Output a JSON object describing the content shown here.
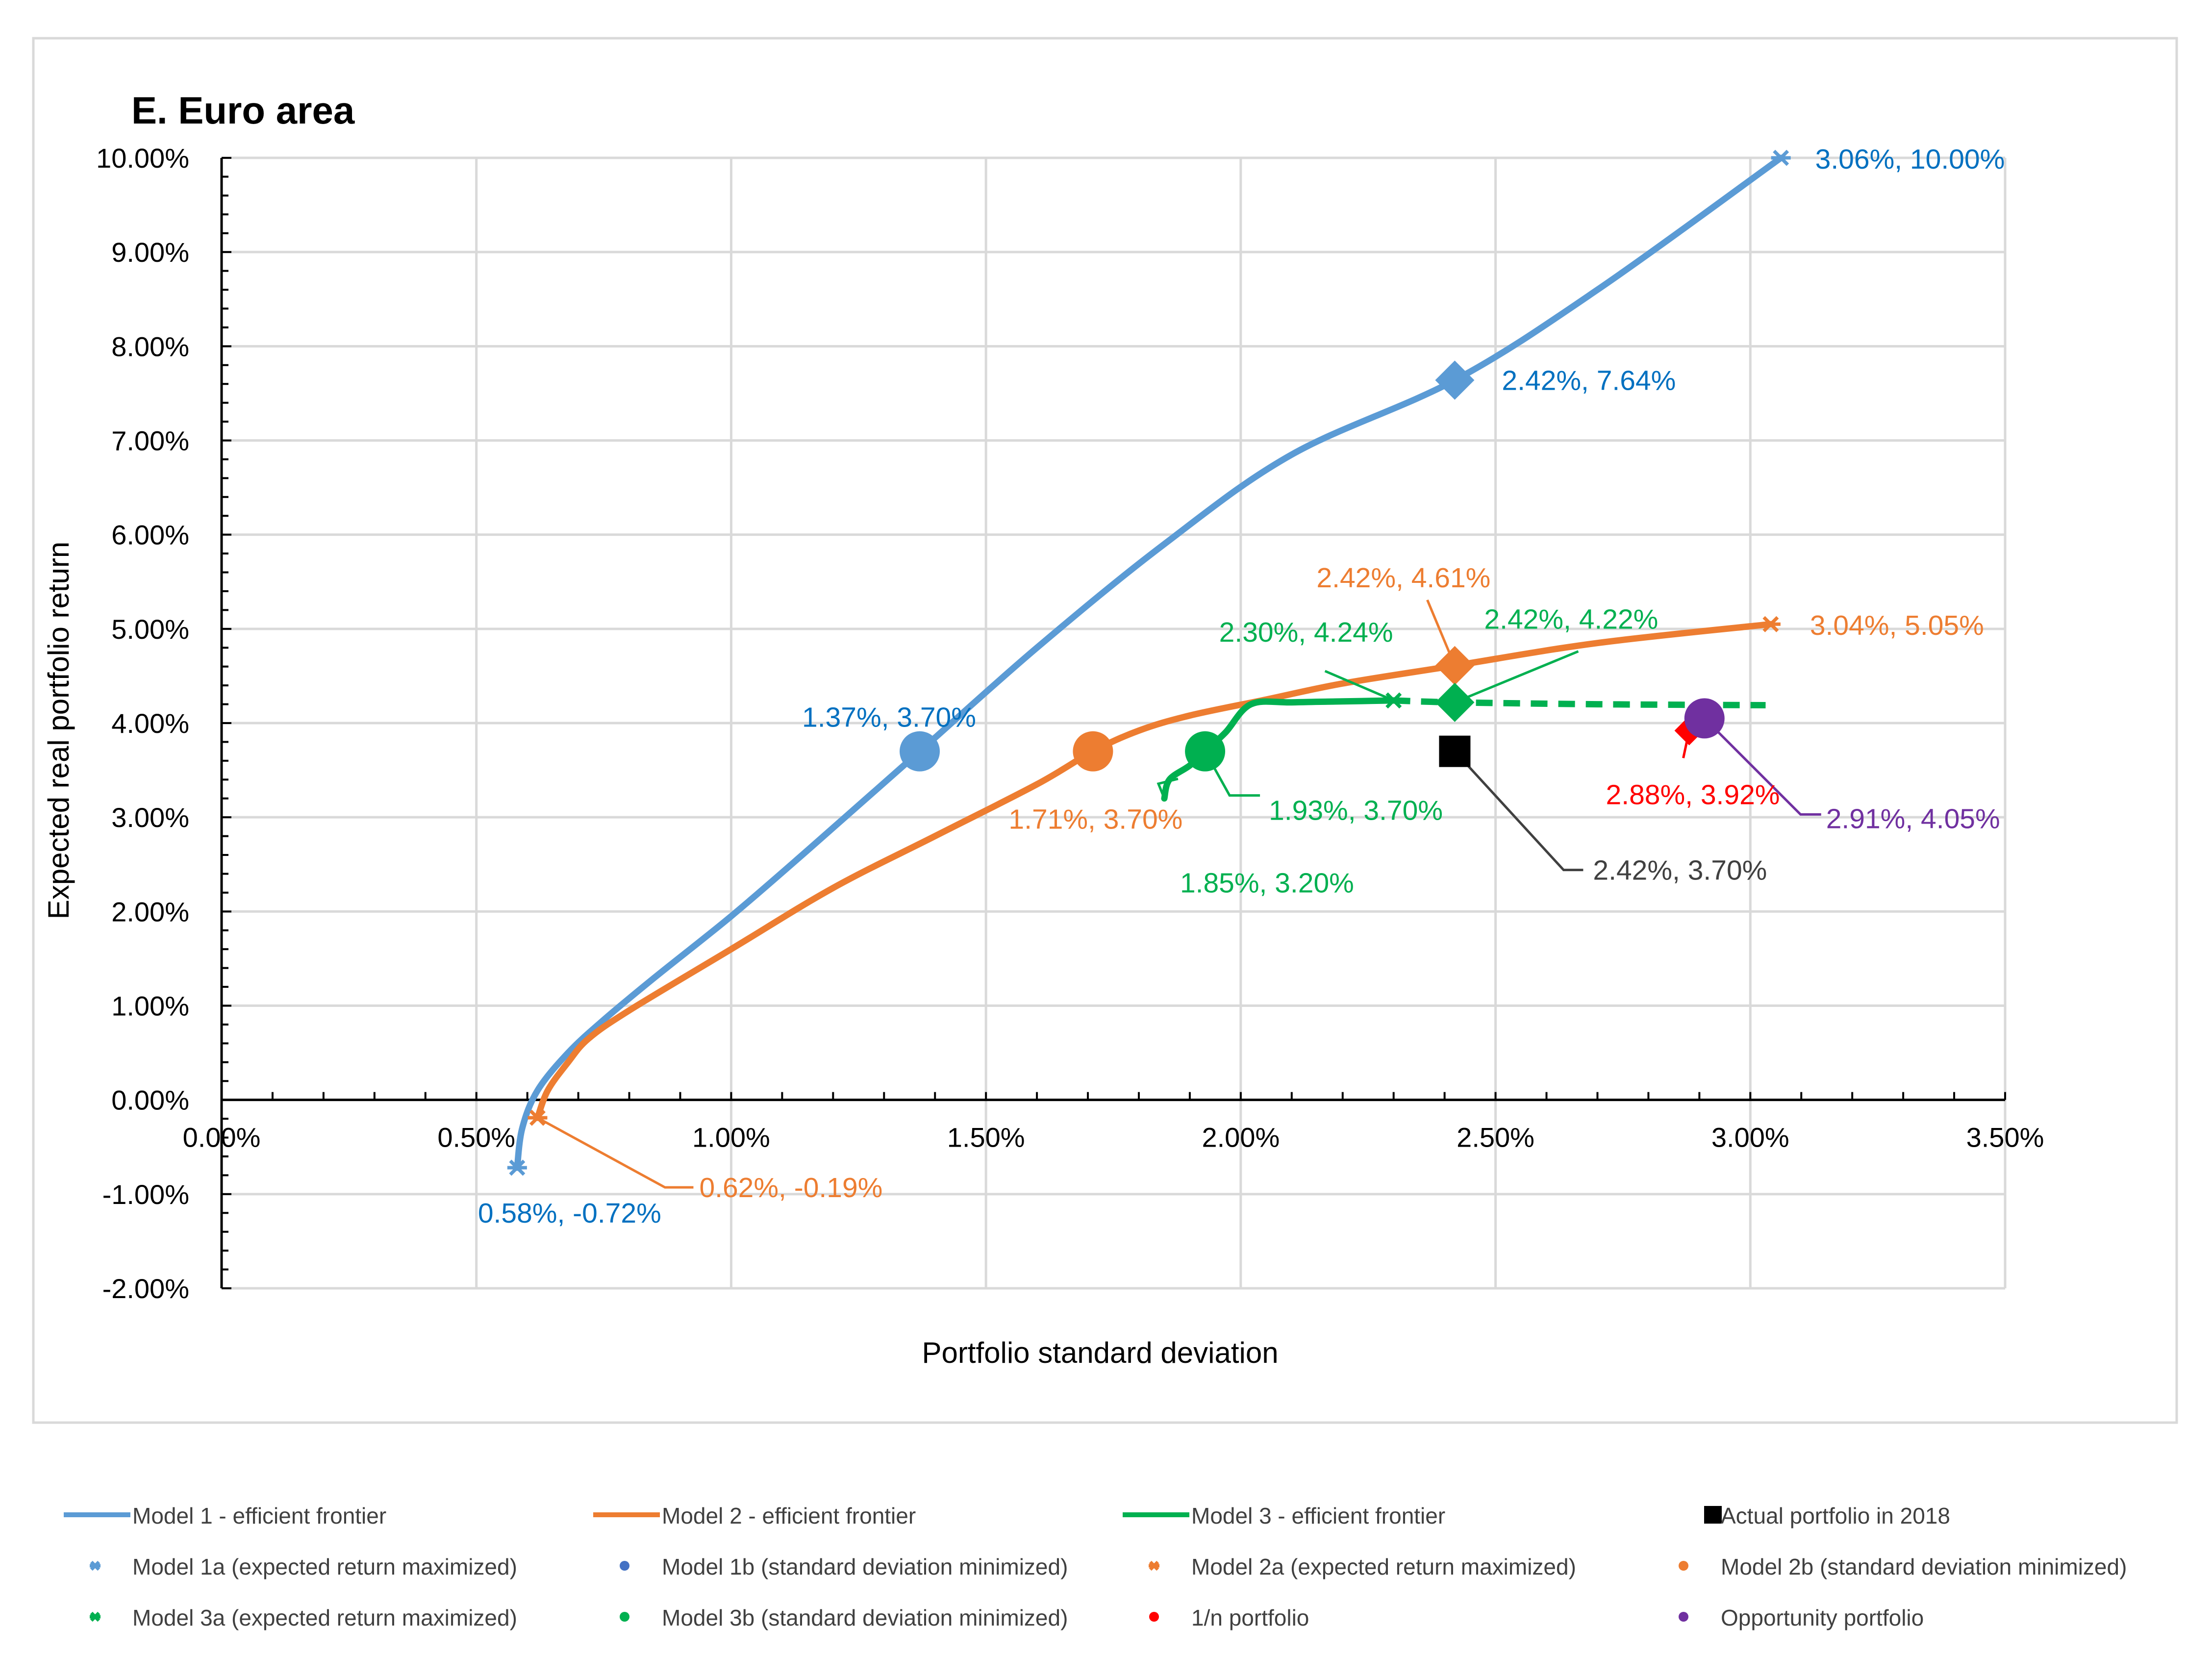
{
  "chart_data": {
    "type": "line",
    "title": "E. Euro area",
    "xlabel": "Portfolio standard deviation",
    "ylabel": "Expected real portfolio return",
    "xlim": [
      0,
      3.5
    ],
    "ylim": [
      -2,
      10
    ],
    "xticks": [
      0,
      0.5,
      1,
      1.5,
      2,
      2.5,
      3,
      3.5
    ],
    "yticks": [
      -2,
      -1,
      0,
      1,
      2,
      3,
      4,
      5,
      6,
      7,
      8,
      9,
      10
    ],
    "xtick_labels": [
      "0.00%",
      "0.50%",
      "1.00%",
      "1.50%",
      "2.00%",
      "2.50%",
      "3.00%",
      "3.50%"
    ],
    "ytick_labels": [
      "-2.00%",
      "-1.00%",
      "0.00%",
      "1.00%",
      "2.00%",
      "3.00%",
      "4.00%",
      "5.00%",
      "6.00%",
      "7.00%",
      "8.00%",
      "9.00%",
      "10.00%"
    ],
    "grid": true,
    "legend_position": "bottom",
    "colors": {
      "model1": "#5B9BD5",
      "model1_label": "#0070C0",
      "model2": "#ED7D31",
      "model3": "#00B050",
      "actual": "#000000",
      "one_over_n": "#FF0000",
      "opportunity": "#7030A0"
    },
    "series": [
      {
        "name": "Model 1 - efficient frontier",
        "color": "#5B9BD5",
        "x": [
          0.58,
          0.59,
          0.62,
          0.68,
          0.75,
          0.85,
          1.0,
          1.15,
          1.37,
          1.6,
          1.85,
          2.1,
          2.42,
          2.7,
          3.06
        ],
        "y": [
          -0.72,
          -0.3,
          0.1,
          0.5,
          0.85,
          1.3,
          1.95,
          2.65,
          3.7,
          4.8,
          5.9,
          6.85,
          7.64,
          8.6,
          10.0
        ]
      },
      {
        "name": "Model 2 - efficient frontier",
        "color": "#ED7D31",
        "x": [
          0.62,
          0.64,
          0.68,
          0.72,
          0.8,
          1.0,
          1.2,
          1.4,
          1.6,
          1.71,
          1.8,
          1.9,
          2.05,
          2.2,
          2.42,
          2.7,
          3.04
        ],
        "y": [
          -0.19,
          0.1,
          0.4,
          0.65,
          0.95,
          1.6,
          2.25,
          2.8,
          3.35,
          3.7,
          3.92,
          4.08,
          4.25,
          4.42,
          4.61,
          4.85,
          5.05
        ]
      },
      {
        "name": "Model 3 - efficient frontier",
        "color": "#00B050",
        "x": [
          1.85,
          1.86,
          1.9,
          1.93,
          1.97,
          2.02,
          2.1,
          2.2,
          2.3
        ],
        "y": [
          3.2,
          3.4,
          3.55,
          3.7,
          3.9,
          4.2,
          4.22,
          4.23,
          4.24
        ]
      },
      {
        "name": "Model 3 - efficient frontier (extension)",
        "color": "#00B050",
        "dashed": true,
        "x": [
          2.3,
          2.42,
          2.7,
          3.03
        ],
        "y": [
          4.24,
          4.22,
          4.2,
          4.19
        ]
      }
    ],
    "points": [
      {
        "name": "Model 1a  (expected return maximized)",
        "x": 3.06,
        "y": 10.0,
        "marker": "star",
        "color": "#5B9BD5",
        "label": "3.06%, 10.00%",
        "label_color": "#0070C0"
      },
      {
        "name": "Model 1a min",
        "x": 0.58,
        "y": -0.72,
        "marker": "star",
        "color": "#5B9BD5",
        "label": "0.58%, -0.72%",
        "label_color": "#0070C0"
      },
      {
        "name": "Model 1 diamond",
        "x": 2.42,
        "y": 7.64,
        "marker": "diamond",
        "color": "#5B9BD5",
        "label": "2.42%, 7.64%",
        "label_color": "#0070C0"
      },
      {
        "name": "Model 1b (standard deviation minimized)",
        "x": 1.37,
        "y": 3.7,
        "marker": "circle",
        "color": "#5B9BD5",
        "label": "1.37%, 3.70%",
        "label_color": "#0070C0"
      },
      {
        "name": "Model 2a  (expected return maximized)",
        "x": 3.04,
        "y": 5.05,
        "marker": "star",
        "color": "#ED7D31",
        "label": "3.04%, 5.05%",
        "label_color": "#ED7D31"
      },
      {
        "name": "Model 2a min",
        "x": 0.62,
        "y": -0.19,
        "marker": "star",
        "color": "#ED7D31",
        "label": "0.62%, -0.19%",
        "label_color": "#ED7D31"
      },
      {
        "name": "Model 2 diamond",
        "x": 2.42,
        "y": 4.61,
        "marker": "diamond",
        "color": "#ED7D31",
        "label": "2.42%, 4.61%",
        "label_color": "#ED7D31"
      },
      {
        "name": "Model 2b (standard deviation minimized)",
        "x": 1.71,
        "y": 3.7,
        "marker": "circle",
        "color": "#ED7D31",
        "label": "1.71%, 3.70%",
        "label_color": "#ED7D31"
      },
      {
        "name": "Model 3a  (expected return maximized)",
        "x": 2.3,
        "y": 4.24,
        "marker": "star",
        "color": "#00B050",
        "label": "2.30%, 4.24%",
        "label_color": "#00B050"
      },
      {
        "name": "Model 3 min",
        "x": 1.85,
        "y": 3.2,
        "marker": "none",
        "color": "#00B050",
        "label": "1.85%, 3.20%",
        "label_color": "#00B050"
      },
      {
        "name": "Model 3 diamond",
        "x": 2.42,
        "y": 4.22,
        "marker": "diamond",
        "color": "#00B050",
        "label": "2.42%, 4.22%",
        "label_color": "#00B050"
      },
      {
        "name": "Model 3b (standard deviation minimized)",
        "x": 1.93,
        "y": 3.7,
        "marker": "circle",
        "color": "#00B050",
        "label": "1.93%, 3.70%",
        "label_color": "#00B050"
      },
      {
        "name": "Actual portfolio in 2018",
        "x": 2.42,
        "y": 3.7,
        "marker": "square",
        "color": "#000000",
        "label": "2.42%, 3.70%",
        "label_color": "#404040"
      },
      {
        "name": "1/n portfolio",
        "x": 2.88,
        "y": 3.92,
        "marker": "diamond",
        "color": "#FF0000",
        "label": "2.88%, 3.92%",
        "label_color": "#FF0000"
      },
      {
        "name": "Opportunity portfolio",
        "x": 2.91,
        "y": 4.05,
        "marker": "circle",
        "color": "#7030A0",
        "label": "2.91%, 4.05%",
        "label_color": "#7030A0"
      }
    ],
    "legend": [
      {
        "label": "Model 1 - efficient frontier",
        "symbol": "line",
        "color": "#5B9BD5"
      },
      {
        "label": "Model 2 - efficient frontier",
        "symbol": "line",
        "color": "#ED7D31"
      },
      {
        "label": "Model 3 - efficient frontier",
        "symbol": "line",
        "color": "#00B050"
      },
      {
        "label": "Actual portfolio in 2018",
        "symbol": "square",
        "color": "#000000"
      },
      {
        "label": "Model 1a  (expected return maximized)",
        "symbol": "star",
        "color": "#5B9BD5"
      },
      {
        "label": "Model 1b (standard deviation minimized)",
        "symbol": "dot",
        "color": "#4472C4"
      },
      {
        "label": "Model 2a  (expected return maximized)",
        "symbol": "star",
        "color": "#ED7D31"
      },
      {
        "label": "Model 2b (standard deviation minimized)",
        "symbol": "dot",
        "color": "#ED7D31"
      },
      {
        "label": "Model 3a  (expected return maximized)",
        "symbol": "star",
        "color": "#00B050"
      },
      {
        "label": "Model 3b (standard deviation minimized)",
        "symbol": "dot",
        "color": "#00B050"
      },
      {
        "label": "1/n portfolio",
        "symbol": "dot",
        "color": "#FF0000"
      },
      {
        "label": "Opportunity portfolio",
        "symbol": "dot",
        "color": "#7030A0"
      }
    ]
  }
}
